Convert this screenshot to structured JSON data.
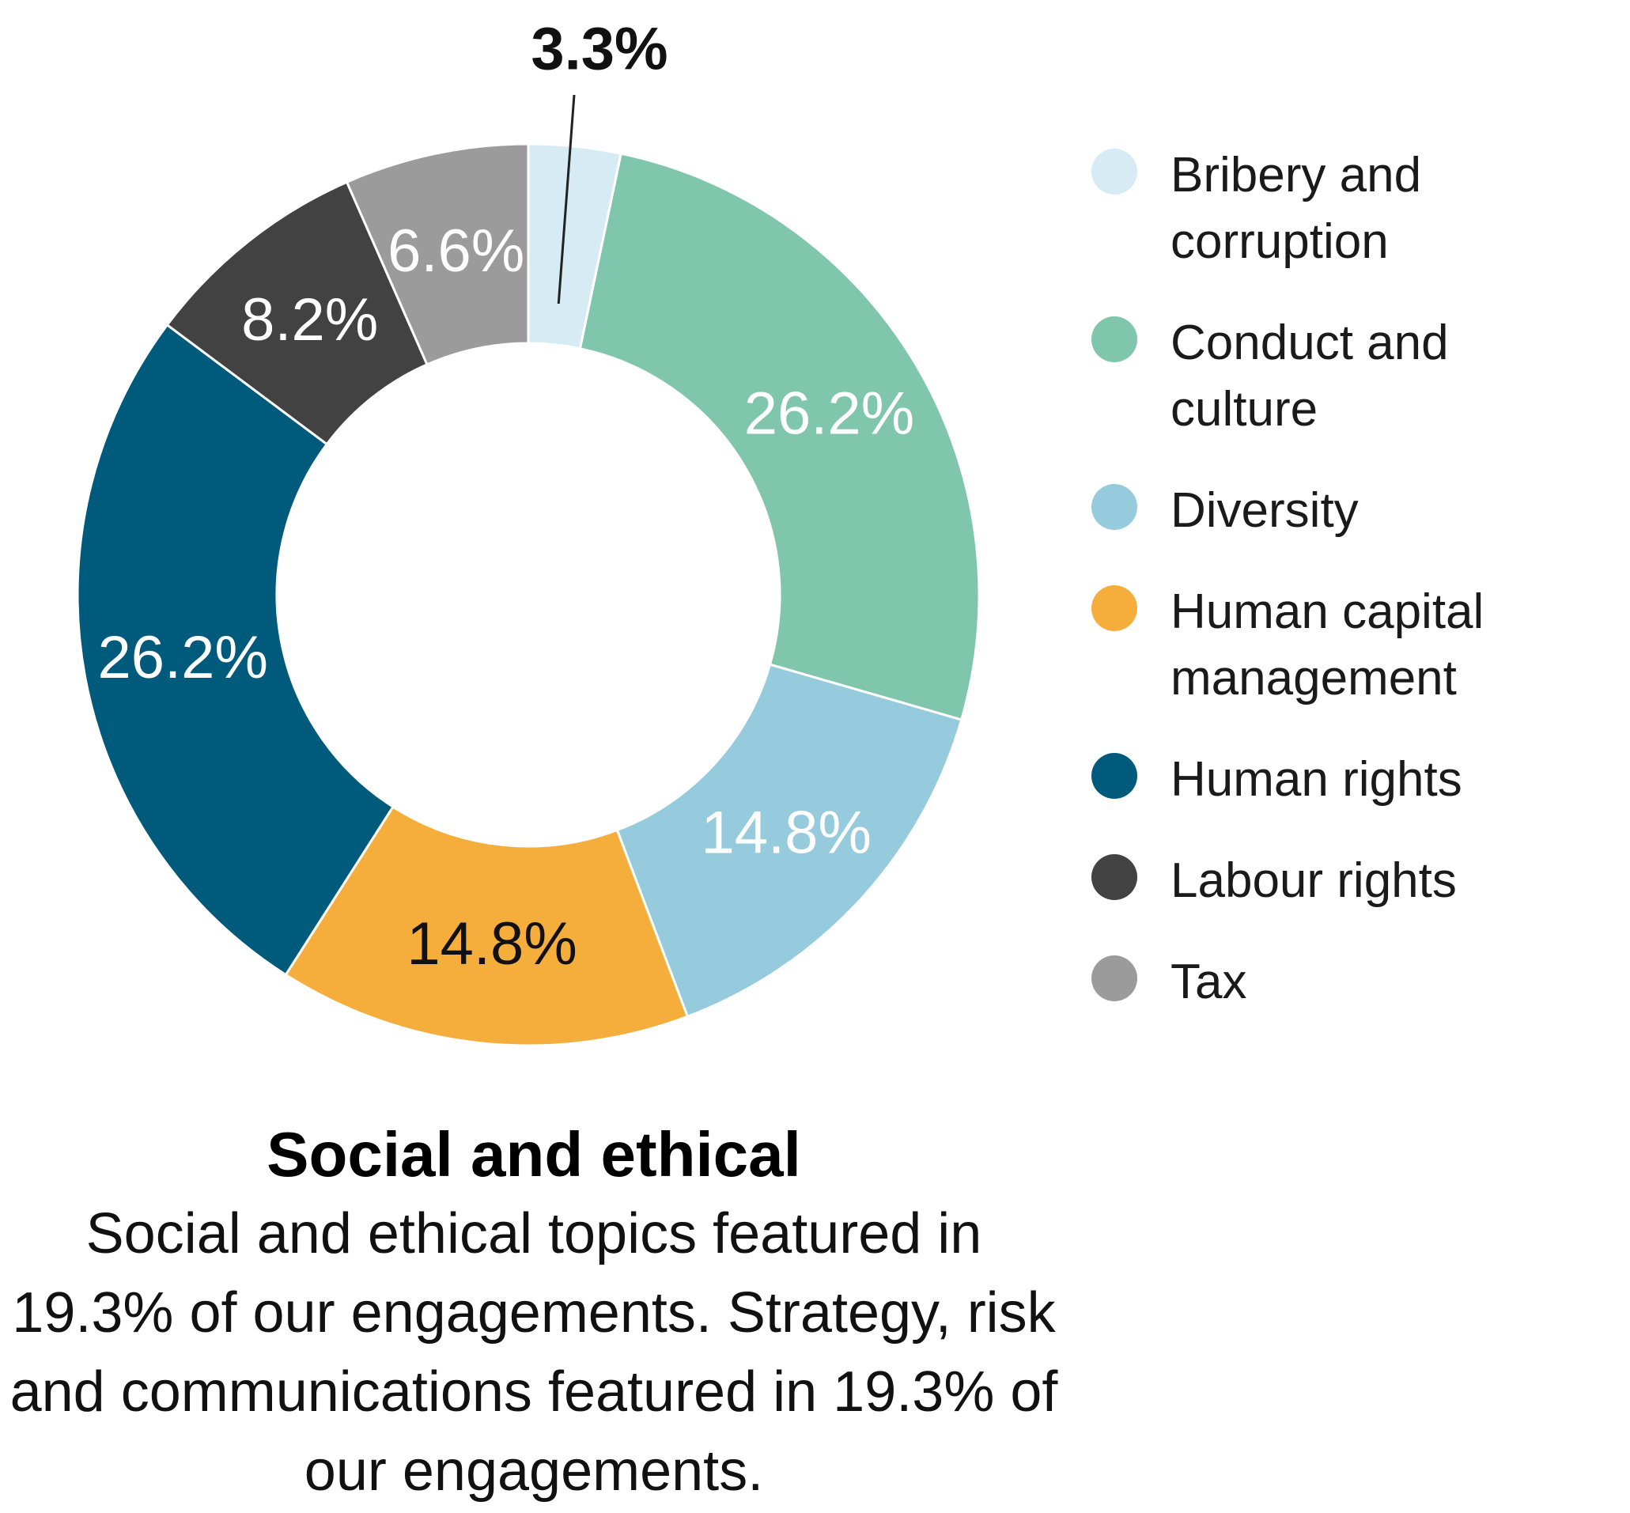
{
  "chart_data": {
    "type": "pie",
    "donut": true,
    "categories": [
      "Bribery and corruption",
      "Conduct and culture",
      "Diversity",
      "Human capital management",
      "Human rights",
      "Labour rights",
      "Tax"
    ],
    "values": [
      3.3,
      26.2,
      14.8,
      14.8,
      26.2,
      8.2,
      6.6
    ],
    "value_labels": [
      "3.3%",
      "26.2%",
      "14.8%",
      "14.8%",
      "26.2%",
      "8.2%",
      "6.6%"
    ],
    "colors": [
      "#d6ebf3",
      "#80c6ac",
      "#96cbde",
      "#f5ae3b",
      "#005a7c",
      "#424242",
      "#9b9b9b"
    ],
    "label_colors": [
      "#111111",
      "#ffffff",
      "#ffffff",
      "#111111",
      "#ffffff",
      "#ffffff",
      "#ffffff"
    ],
    "legend": {
      "position": "right",
      "items": [
        "Bribery and corruption",
        "Conduct and culture",
        "Diversity",
        "Human capital management",
        "Human rights",
        "Labour rights",
        "Tax"
      ]
    }
  },
  "caption": {
    "title": "Social and ethical",
    "body": "Social and ethical topics featured in 19.3% of our engagements. Strategy, risk and communications featured in 19.3% of our engagements."
  }
}
